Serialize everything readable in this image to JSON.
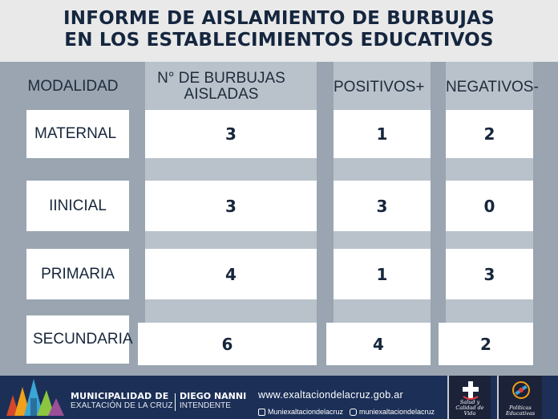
{
  "title": {
    "line1": "INFORME DE AISLAMIENTO DE BURBUJAS",
    "line2": "EN LOS ESTABLECIMIENTOS EDUCATIVOS"
  },
  "table": {
    "headers": {
      "modalidad": "MODALIDAD",
      "burbujas_line1": "N° DE BURBUJAS",
      "burbujas_line2": "AISLADAS",
      "positivos": "POSITIVOS+",
      "negativos": "NEGATIVOS-"
    },
    "rows": [
      {
        "modalidad": "MATERNAL",
        "burbujas": "3",
        "positivos": "1",
        "negativos": "2"
      },
      {
        "modalidad": "IINICIAL",
        "burbujas": "3",
        "positivos": "3",
        "negativos": "0"
      },
      {
        "modalidad": "PRIMARIA",
        "burbujas": "4",
        "positivos": "1",
        "negativos": "3"
      },
      {
        "modalidad": "SECUNDARIA",
        "burbujas": "6",
        "positivos": "4",
        "negativos": "2"
      }
    ]
  },
  "footer": {
    "municipalidad": "MUNICIPALIDAD DE",
    "localidad": "EXALTACIÓN DE LA CRUZ",
    "intendente_nombre": "DIEGO NANNI",
    "intendente_cargo": "INTENDENTE",
    "website": "www.exaltaciondelacruz.gob.ar",
    "facebook": "Muniexaltaciondelacruz",
    "instagram": "muniexaltaciondelacruz",
    "badge1_line1": "Salud y",
    "badge1_line2": "Calidad de Vida",
    "badge2_line1": "Políticas",
    "badge2_line2": "Educativas"
  },
  "colors": {
    "header_bg": "#e9e9e9",
    "title_text": "#15263f",
    "panel_bg": "#9aa5b1",
    "stripe_bg": "#b9c2cb",
    "footer_bg": "#1b2f57"
  }
}
